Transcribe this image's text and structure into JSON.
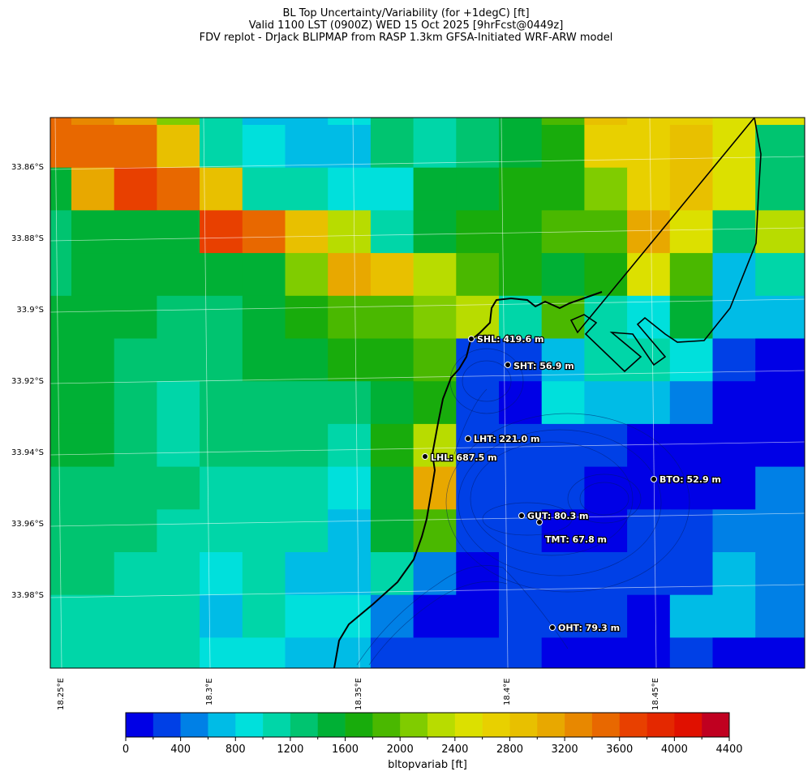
{
  "title": {
    "line1": "BL Top Uncertainty/Variability (for +1degC) [ft]",
    "line2": "Valid 1100 LST (0900Z) WED 15 Oct 2025 [9hrFcst@0449z]",
    "line3": "FDV replot - DrJack BLIPMAP from RASP 1.3km GFSA-Initiated WRF-ARW model"
  },
  "axes": {
    "lat_labels": [
      "33.86°S",
      "33.88°S",
      "33.9°S",
      "33.92°S",
      "33.94°S",
      "33.96°S",
      "33.98°S"
    ],
    "lon_labels": [
      "18.25°E",
      "18.3°E",
      "18.35°E",
      "18.4°E",
      "18.45°E"
    ]
  },
  "colorbar": {
    "label": "bltopvariab [ft]",
    "tick_labels": [
      "0",
      "400",
      "800",
      "1200",
      "1600",
      "2000",
      "2400",
      "2800",
      "3200",
      "3600",
      "4000",
      "4400"
    ],
    "levels_ft": [
      0,
      200,
      400,
      600,
      800,
      1000,
      1200,
      1400,
      1600,
      1800,
      2000,
      2200,
      2400,
      2600,
      2800,
      3000,
      3200,
      3400,
      3600,
      3800,
      4000,
      4200,
      4400
    ],
    "colors": [
      "#0000e6",
      "#0040e6",
      "#0080e6",
      "#00bce6",
      "#00e0dc",
      "#00d6a8",
      "#00c470",
      "#00b035",
      "#18ac0c",
      "#4ab800",
      "#80cc00",
      "#b8dc00",
      "#dce000",
      "#e8d000",
      "#e8c000",
      "#e8a800",
      "#e88800",
      "#e86800",
      "#e84000",
      "#e42800",
      "#e01000",
      "#c00020"
    ]
  },
  "chart_data": {
    "type": "heatmap",
    "title": "BL Top Uncertainty/Variability (for +1degC) [ft]",
    "value_encoding": "colorbar bin index (bin i spans levels_ft[i] to levels_ft[i+1])",
    "grid_bins": [
      [
        17,
        16,
        15,
        10,
        5,
        3,
        3,
        4,
        6,
        5,
        6,
        7,
        9,
        14,
        13,
        13,
        12,
        12,
        12
      ],
      [
        17,
        17,
        17,
        14,
        5,
        4,
        3,
        3,
        6,
        5,
        6,
        7,
        8,
        13,
        13,
        14,
        12,
        6,
        6
      ],
      [
        7,
        15,
        18,
        17,
        14,
        5,
        5,
        4,
        4,
        7,
        7,
        8,
        8,
        10,
        13,
        14,
        12,
        6,
        6
      ],
      [
        6,
        7,
        7,
        7,
        18,
        17,
        14,
        11,
        5,
        7,
        8,
        8,
        9,
        9,
        15,
        12,
        6,
        11,
        11
      ],
      [
        6,
        7,
        7,
        7,
        7,
        7,
        10,
        15,
        14,
        11,
        9,
        8,
        7,
        8,
        12,
        9,
        3,
        5,
        5
      ],
      [
        7,
        7,
        7,
        6,
        6,
        7,
        8,
        9,
        9,
        10,
        11,
        5,
        9,
        5,
        4,
        7,
        3,
        3,
        3
      ],
      [
        7,
        7,
        6,
        6,
        6,
        7,
        7,
        8,
        8,
        9,
        1,
        1,
        3,
        5,
        5,
        4,
        1,
        0,
        0
      ],
      [
        7,
        7,
        6,
        5,
        6,
        6,
        6,
        6,
        7,
        8,
        1,
        0,
        4,
        3,
        3,
        2,
        0,
        0,
        0
      ],
      [
        7,
        7,
        6,
        5,
        6,
        6,
        6,
        5,
        8,
        11,
        1,
        1,
        1,
        1,
        0,
        0,
        0,
        0,
        0
      ],
      [
        6,
        6,
        6,
        6,
        5,
        5,
        5,
        4,
        7,
        15,
        1,
        1,
        1,
        0,
        0,
        0,
        0,
        2,
        2
      ],
      [
        6,
        6,
        6,
        5,
        5,
        5,
        5,
        3,
        7,
        9,
        1,
        1,
        0,
        0,
        1,
        1,
        2,
        2,
        2
      ],
      [
        6,
        6,
        5,
        5,
        4,
        5,
        3,
        3,
        5,
        2,
        0,
        1,
        1,
        1,
        1,
        1,
        3,
        2,
        2
      ],
      [
        5,
        5,
        5,
        5,
        3,
        5,
        4,
        4,
        2,
        0,
        0,
        1,
        1,
        1,
        0,
        3,
        3,
        2,
        2
      ],
      [
        5,
        5,
        5,
        5,
        4,
        4,
        3,
        3,
        1,
        1,
        1,
        1,
        0,
        0,
        0,
        1,
        0,
        0,
        0
      ]
    ]
  },
  "stations": [
    {
      "label": "SHL: 419.6 m"
    },
    {
      "label": "SHT: 56.9 m"
    },
    {
      "label": "LHT: 221.0 m"
    },
    {
      "label": "LHL: 687.5 m"
    },
    {
      "label": "BTO: 52.9 m"
    },
    {
      "label": "GUT: 80.3 m"
    },
    {
      "label": "TMT: 67.8 m"
    },
    {
      "label": "OHT: 79.3 m"
    }
  ]
}
